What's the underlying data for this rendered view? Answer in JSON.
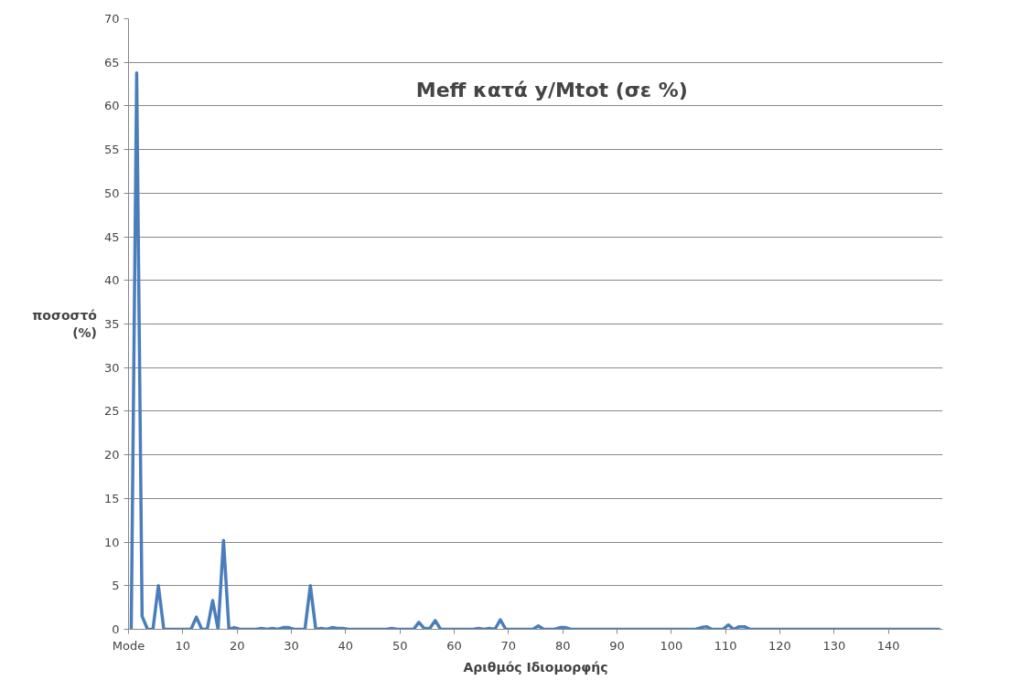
{
  "chart_data": {
    "type": "line",
    "title": "Meff κατά y/Mtot (σε %)",
    "xlabel": "Αριθμός Ιδιομορφής",
    "ylabel": "ποσοστό\n(%)",
    "x": [
      0.5,
      1.5,
      2.5,
      3.5,
      4.5,
      5.5,
      6.5,
      11.5,
      12.5,
      13.5,
      14.5,
      15.5,
      16.5,
      17.5,
      18.5,
      19.5,
      20.5,
      23.5,
      24.5,
      25.5,
      26.5,
      27.5,
      28.5,
      29.5,
      30.5,
      32.5,
      33.5,
      34.5,
      35.5,
      36.5,
      37.5,
      38.5,
      39.5,
      40.5,
      47.5,
      48.5,
      49.5,
      51.5,
      52.5,
      53.5,
      54.5,
      55.5,
      56.5,
      57.5,
      63.5,
      64.5,
      65.5,
      66.5,
      67.5,
      68.5,
      69.5,
      74.5,
      75.5,
      76.5,
      78.5,
      79.5,
      80.5,
      81.5,
      104.5,
      105.5,
      106.5,
      107.5,
      109.5,
      110.5,
      111.5,
      112.5,
      113.5,
      114.5,
      149.5
    ],
    "series": [
      {
        "color": "#4a7ebb",
        "values": [
          0,
          63.8,
          1.5,
          0,
          0,
          5,
          0,
          0,
          1.4,
          0,
          0,
          3.3,
          0,
          10.2,
          0,
          0.2,
          0,
          0,
          0.1,
          0,
          0.1,
          0,
          0.2,
          0.2,
          0,
          0,
          5,
          0,
          0.1,
          0,
          0.2,
          0.1,
          0.1,
          0,
          0,
          0.1,
          0,
          0,
          0,
          0.8,
          0.1,
          0.1,
          1.0,
          0,
          0,
          0.1,
          0,
          0.1,
          0,
          1.1,
          0,
          0,
          0.4,
          0,
          0,
          0.2,
          0.2,
          0,
          0,
          0.2,
          0.3,
          0,
          0,
          0.5,
          0,
          0.3,
          0.3,
          0,
          0
        ]
      }
    ],
    "xlim": [
      0,
      150
    ],
    "xticks": [
      {
        "value": 0,
        "label": "Mode"
      },
      10,
      20,
      30,
      40,
      50,
      60,
      70,
      80,
      90,
      100,
      110,
      120,
      130,
      140
    ],
    "ylim": [
      0,
      70
    ],
    "yticks": [
      0,
      5,
      10,
      15,
      20,
      25,
      30,
      35,
      40,
      45,
      50,
      55,
      60,
      65,
      70
    ],
    "grid": "y",
    "marker": "none",
    "line_style": "solid"
  }
}
